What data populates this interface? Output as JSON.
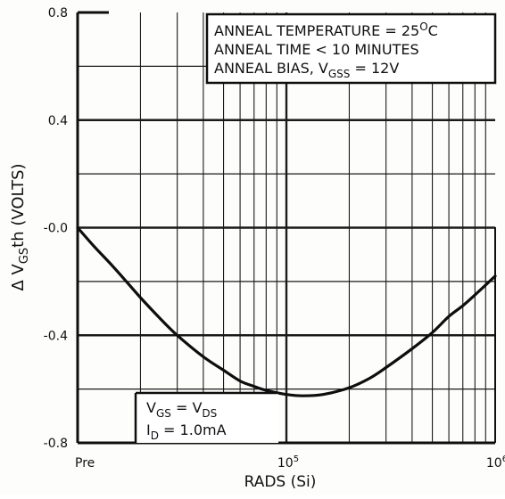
{
  "chart_data": {
    "type": "line",
    "title": "",
    "xlabel": "RADS (Si)",
    "ylabel_parts": {
      "prefix": "Δ V",
      "sub": "GS",
      "suffix": "th (VOLTS)"
    },
    "x_scale": "log",
    "xlim": [
      10000,
      1000000
    ],
    "ylim": [
      -0.8,
      0.8
    ],
    "grid": true,
    "x_tick_labels": [
      {
        "x": 10000,
        "base": "Pre",
        "sup": ""
      },
      {
        "x": 100000,
        "base": "10",
        "sup": "5"
      },
      {
        "x": 1000000,
        "base": "10",
        "sup": "6"
      }
    ],
    "y_ticks": [
      {
        "y": 0.8,
        "label": "0.8"
      },
      {
        "y": 0.4,
        "label": "0.4"
      },
      {
        "y": 0.0,
        "label": "-0.0"
      },
      {
        "y": -0.4,
        "label": "-0.4"
      },
      {
        "y": -0.8,
        "label": "-0.8"
      }
    ],
    "series": [
      {
        "x": [
          10000,
          12000,
          15000,
          20000,
          25000,
          30000,
          40000,
          50000,
          60000,
          70000,
          80000,
          100000,
          120000,
          150000,
          200000,
          250000,
          300000,
          400000,
          500000,
          600000,
          700000,
          800000,
          1000000
        ],
        "y": [
          0.0,
          -0.07,
          -0.15,
          -0.26,
          -0.34,
          -0.4,
          -0.48,
          -0.53,
          -0.57,
          -0.59,
          -0.605,
          -0.62,
          -0.625,
          -0.62,
          -0.595,
          -0.56,
          -0.52,
          -0.45,
          -0.39,
          -0.33,
          -0.29,
          -0.25,
          -0.18
        ]
      }
    ],
    "annotations": {
      "top_box": [
        {
          "parts": [
            {
              "t": "ANNEAL TEMPERATURE = 25"
            },
            {
              "t": "O",
              "sup": true
            },
            {
              "t": "C"
            }
          ]
        },
        {
          "parts": [
            {
              "t": "ANNEAL TIME < 10 MINUTES"
            }
          ]
        },
        {
          "parts": [
            {
              "t": "ANNEAL BIAS,  V"
            },
            {
              "t": "GSS",
              "sub": true
            },
            {
              "t": " = 12V"
            }
          ]
        }
      ],
      "bottom_box": [
        {
          "parts": [
            {
              "t": "V"
            },
            {
              "t": "GS",
              "sub": true
            },
            {
              "t": " = V"
            },
            {
              "t": "DS",
              "sub": true
            }
          ]
        },
        {
          "parts": [
            {
              "t": "I"
            },
            {
              "t": "D",
              "sub": true
            },
            {
              "t": " = 1.0mA"
            }
          ]
        }
      ]
    }
  }
}
